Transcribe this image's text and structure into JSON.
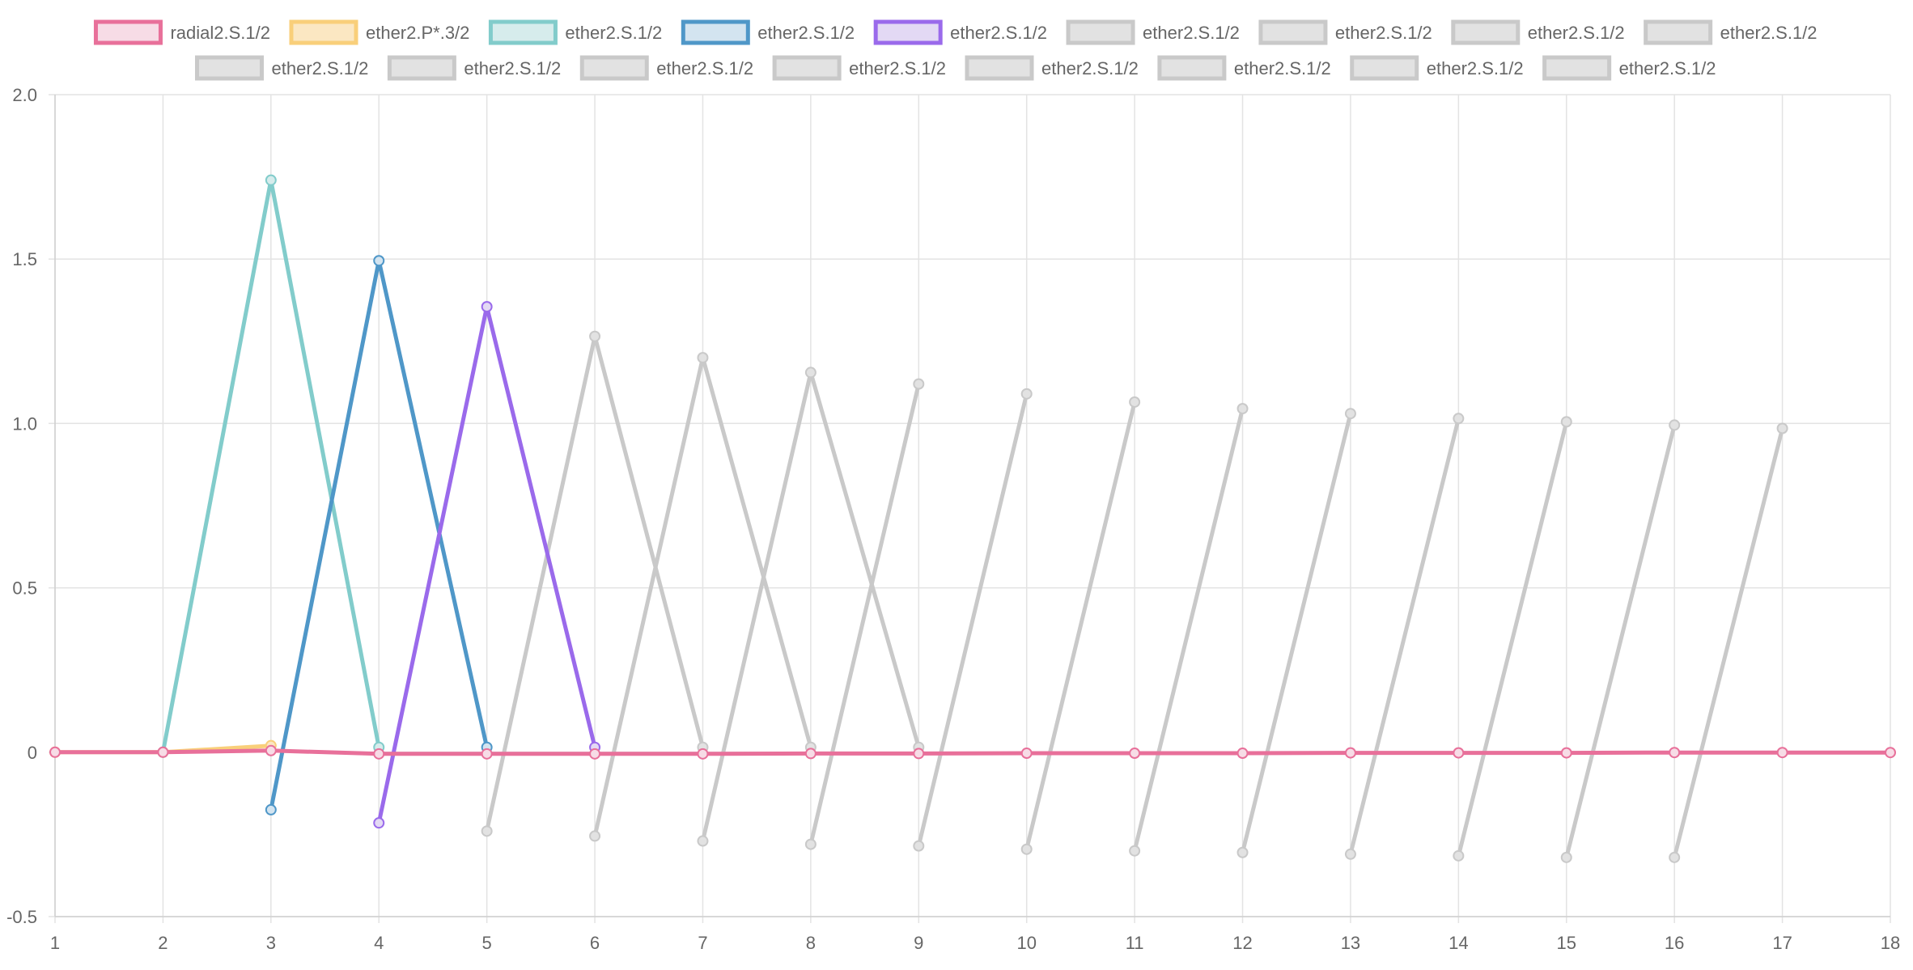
{
  "chart_data": {
    "type": "line",
    "title": "",
    "xlabel": "",
    "ylabel": "",
    "x": [
      1,
      2,
      3,
      4,
      5,
      6,
      7,
      8,
      9,
      10,
      11,
      12,
      13,
      14,
      15,
      16,
      17,
      18
    ],
    "ylim": [
      -0.5,
      2.0
    ],
    "yticks": [
      -0.5,
      0,
      0.5,
      1.0,
      1.5,
      2.0
    ],
    "ytick_labels": [
      "-0.5",
      "0",
      "0.5",
      "1.0",
      "1.5",
      "2.0"
    ],
    "grid": true,
    "legend": "top",
    "legend_hidden_color": "#c9c9c9",
    "legend_hidden_fill": "#e2e2e2",
    "series": [
      {
        "name": "radial2.S.1/2",
        "color": "#e8709a",
        "fill": "#f7dce6",
        "visible": true,
        "points": [
          [
            1,
            0
          ],
          [
            2,
            0
          ],
          [
            3,
            0.005
          ],
          [
            4,
            -0.005
          ],
          [
            5,
            -0.005
          ],
          [
            6,
            -0.005
          ],
          [
            7,
            -0.005
          ],
          [
            8,
            -0.004
          ],
          [
            9,
            -0.004
          ],
          [
            10,
            -0.003
          ],
          [
            11,
            -0.003
          ],
          [
            12,
            -0.003
          ],
          [
            13,
            -0.002
          ],
          [
            14,
            -0.002
          ],
          [
            15,
            -0.002
          ],
          [
            16,
            -0.001
          ],
          [
            17,
            -0.001
          ],
          [
            18,
            -0.001
          ]
        ]
      },
      {
        "name": "ether2.P*.3/2",
        "color": "#f9cf7a",
        "fill": "#fbe7c2",
        "visible": true,
        "points": [
          [
            1,
            0
          ],
          [
            2,
            0
          ],
          [
            3,
            0.02
          ]
        ]
      },
      {
        "name": "ether2.S.1/2",
        "color": "#82cccb",
        "fill": "#d6ecec",
        "visible": true,
        "points": [
          [
            2,
            0
          ],
          [
            3,
            1.74
          ],
          [
            4,
            0.015
          ]
        ]
      },
      {
        "name": "ether2.S.1/2",
        "color": "#4f97c8",
        "fill": "#d3e4f0",
        "visible": true,
        "points": [
          [
            3,
            -0.175
          ],
          [
            4,
            1.495
          ],
          [
            5,
            0.015
          ]
        ]
      },
      {
        "name": "ether2.S.1/2",
        "color": "#9a6aeb",
        "fill": "#e3d9f4",
        "visible": true,
        "points": [
          [
            4,
            -0.215
          ],
          [
            5,
            1.355
          ],
          [
            6,
            0.015
          ]
        ]
      },
      {
        "name": "ether2.S.1/2",
        "visible": false,
        "points": [
          [
            5,
            -0.24
          ],
          [
            6,
            1.265
          ],
          [
            7,
            0.015
          ]
        ]
      },
      {
        "name": "ether2.S.1/2",
        "visible": false,
        "points": [
          [
            6,
            -0.255
          ],
          [
            7,
            1.2
          ],
          [
            8,
            0.015
          ]
        ]
      },
      {
        "name": "ether2.S.1/2",
        "visible": false,
        "points": [
          [
            7,
            -0.27
          ],
          [
            8,
            1.155
          ],
          [
            9,
            0.015
          ]
        ]
      },
      {
        "name": "ether2.S.1/2",
        "visible": false,
        "points": [
          [
            8,
            -0.28
          ],
          [
            9,
            1.12
          ]
        ]
      },
      {
        "name": "ether2.S.1/2",
        "visible": false,
        "points": [
          [
            9,
            -0.285
          ],
          [
            10,
            1.09
          ]
        ]
      },
      {
        "name": "ether2.S.1/2",
        "visible": false,
        "points": [
          [
            10,
            -0.295
          ],
          [
            11,
            1.065
          ]
        ]
      },
      {
        "name": "ether2.S.1/2",
        "visible": false,
        "points": [
          [
            11,
            -0.3
          ],
          [
            12,
            1.045
          ]
        ]
      },
      {
        "name": "ether2.S.1/2",
        "visible": false,
        "points": [
          [
            12,
            -0.305
          ],
          [
            13,
            1.03
          ]
        ]
      },
      {
        "name": "ether2.S.1/2",
        "visible": false,
        "points": [
          [
            13,
            -0.31
          ],
          [
            14,
            1.015
          ]
        ]
      },
      {
        "name": "ether2.S.1/2",
        "visible": false,
        "points": [
          [
            14,
            -0.315
          ],
          [
            15,
            1.005
          ]
        ]
      },
      {
        "name": "ether2.S.1/2",
        "visible": false,
        "points": [
          [
            15,
            -0.32
          ],
          [
            16,
            0.995
          ]
        ]
      },
      {
        "name": "ether2.S.1/2",
        "visible": false,
        "points": [
          [
            16,
            -0.32
          ],
          [
            17,
            0.985
          ]
        ]
      }
    ]
  }
}
